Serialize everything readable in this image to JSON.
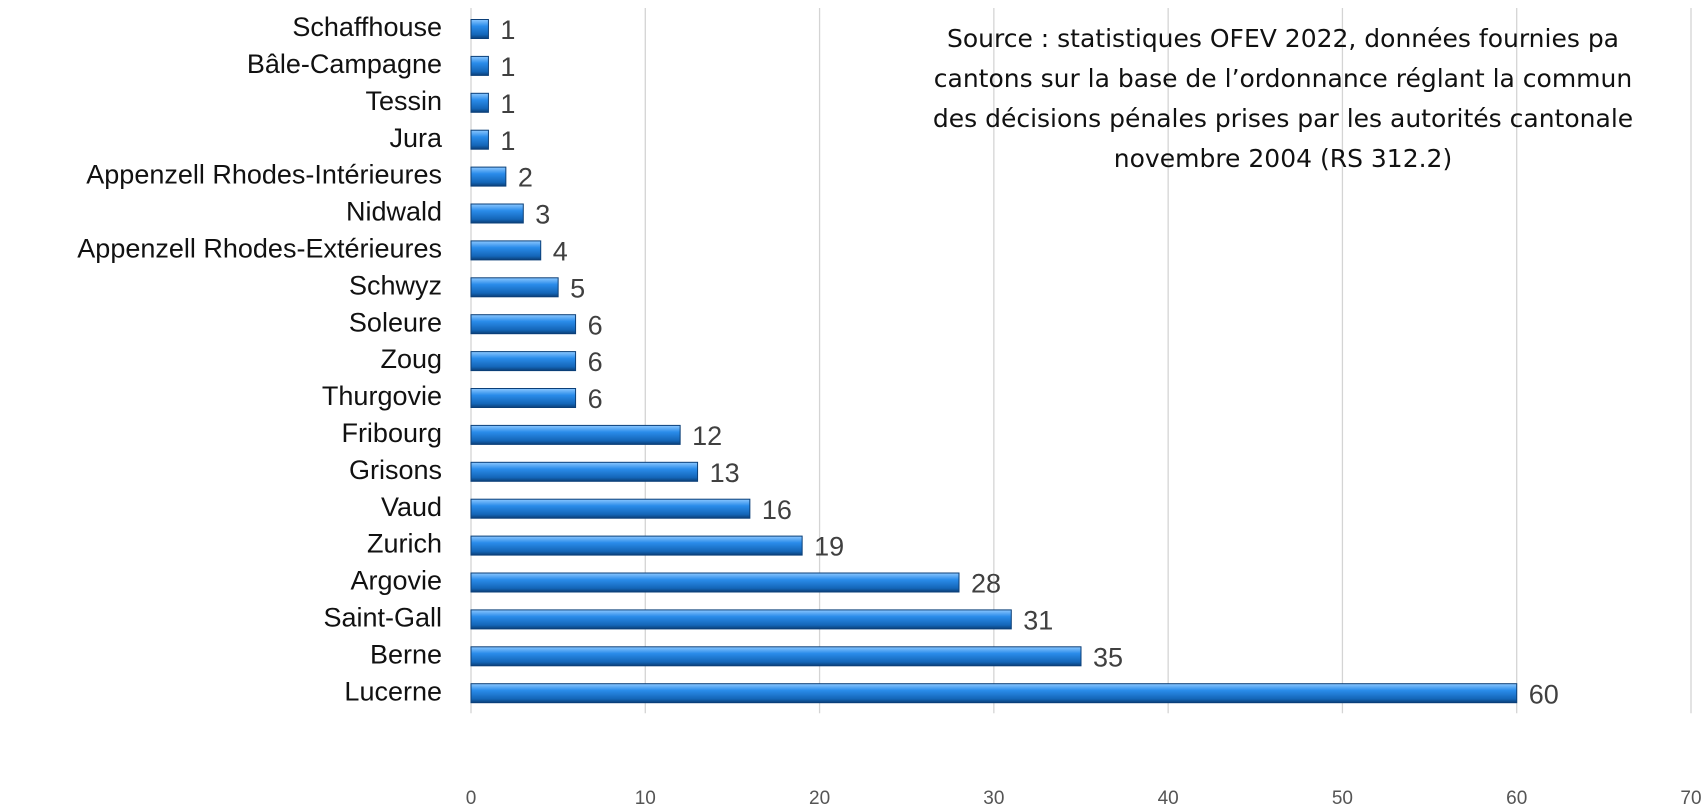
{
  "chart_data": {
    "type": "bar",
    "orientation": "horizontal",
    "categories": [
      "Schaffhouse",
      "Bâle-Campagne",
      "Tessin",
      "Jura",
      "Appenzell Rhodes-Intérieures",
      "Nidwald",
      "Appenzell Rhodes-Extérieures",
      "Schwyz",
      "Soleure",
      "Zoug",
      "Thurgovie",
      "Fribourg",
      "Grisons",
      "Vaud",
      "Zurich",
      "Argovie",
      "Saint-Gall",
      "Berne",
      "Lucerne"
    ],
    "values": [
      1,
      1,
      1,
      1,
      2,
      3,
      4,
      5,
      6,
      6,
      6,
      12,
      13,
      16,
      19,
      28,
      31,
      35,
      60
    ],
    "color": "#1f7fd8",
    "xlim": [
      0,
      70
    ],
    "xticks": [
      0,
      10,
      20,
      30,
      40,
      50,
      60,
      70
    ],
    "grid": true,
    "annotation": [
      "Source : statistiques OFEV 2022, données fournies pa",
      "cantons sur la base de l’ordonnance réglant la commun",
      "des décisions pénales prises par les autorités cantonale",
      "novembre 2004 (RS 312.2)"
    ]
  }
}
